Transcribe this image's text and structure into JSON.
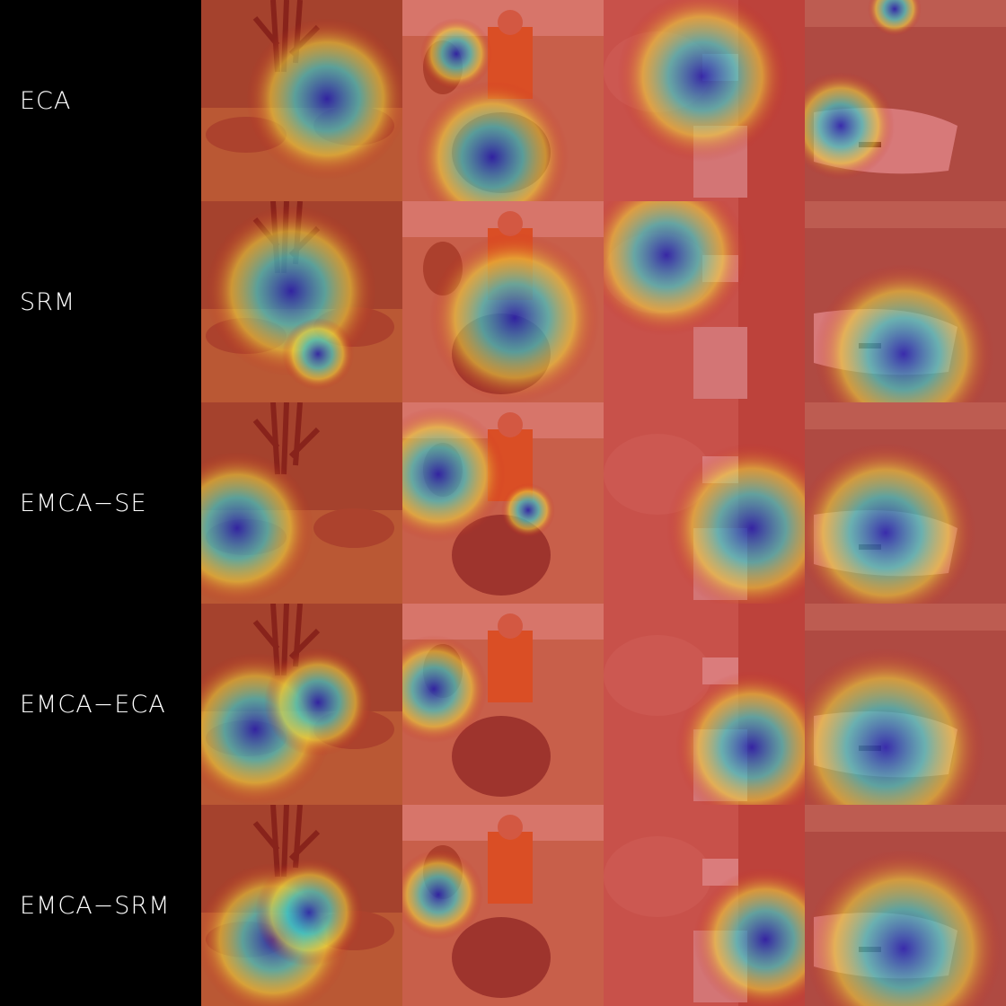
{
  "rows": [
    {
      "label": "ECA"
    },
    {
      "label": "SRM"
    },
    {
      "label": "EMCA−SE"
    },
    {
      "label": "EMCA−ECA"
    },
    {
      "label": "EMCA−SRM"
    }
  ],
  "columns": [
    {
      "scene": "two antelopes fighting under a bare tree"
    },
    {
      "scene": "person riding a camel, another camel in background"
    },
    {
      "scene": "hand holding a stick with buildings in background"
    },
    {
      "scene": "close-up of a white object on a table"
    }
  ],
  "colors": {
    "background": "#000000",
    "label_text": "#ffffff",
    "heat_high": "#c81e1e",
    "heat_mid": "#f0dc3c",
    "heat_cool": "#3cc8c8",
    "heat_low": "#1e1eb4"
  }
}
